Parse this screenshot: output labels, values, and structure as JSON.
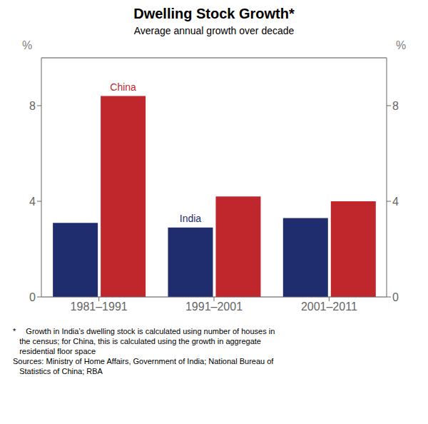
{
  "chart_data": {
    "type": "bar",
    "title": "Dwelling Stock Growth*",
    "subtitle": "Average annual growth over decade",
    "categories": [
      "1981–1991",
      "1991–2001",
      "2001–2011"
    ],
    "series": [
      {
        "name": "India",
        "color": "#1f2d6e",
        "values": [
          3.1,
          2.9,
          3.3
        ]
      },
      {
        "name": "China",
        "color": "#c0272d",
        "values": [
          8.4,
          4.2,
          4.0
        ]
      }
    ],
    "ylim": [
      0,
      10
    ],
    "yticks": [
      0,
      4,
      8
    ],
    "y2lim": [
      0,
      10
    ],
    "y2ticks": [
      0,
      4,
      8
    ],
    "ylabel": "%",
    "y2label": "%",
    "grid": true,
    "footnote": [
      "*  Growth in India’s dwelling stock is calculated using number of houses in",
      "   the census; for China, this is calculated using the growth in aggregate",
      "   residential floor space",
      "Sources: Ministry of Home Affairs, Government of India; National Bureau of",
      "   Statistics of China; RBA"
    ]
  }
}
